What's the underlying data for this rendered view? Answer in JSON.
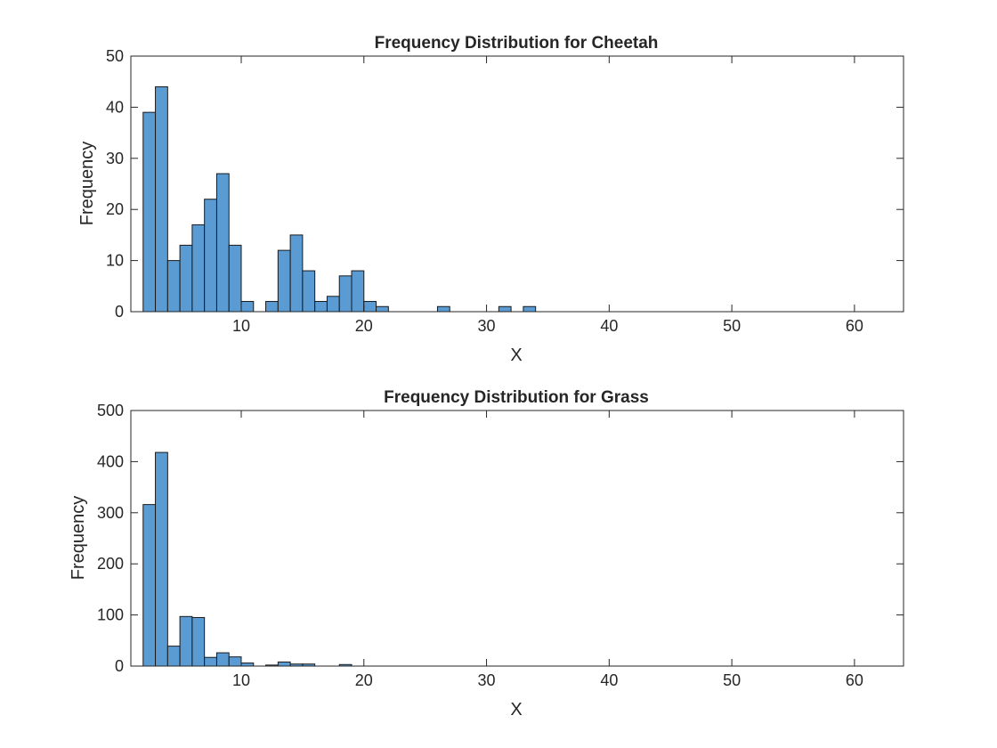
{
  "colors": {
    "bar_fill": "#5b9bd3",
    "bar_edge": "#1a1a1a",
    "axis": "#262626",
    "background": "#ffffff"
  },
  "chart_data": [
    {
      "type": "bar",
      "title": "Frequency Distribution for Cheetah",
      "xlabel": "X",
      "ylabel": "Frequency",
      "xlim": [
        1,
        64
      ],
      "ylim": [
        0,
        50
      ],
      "xticks": [
        10,
        20,
        30,
        40,
        50,
        60
      ],
      "yticks": [
        0,
        10,
        20,
        30,
        40,
        50
      ],
      "bin_edges": [
        2,
        3,
        4,
        5,
        6,
        7,
        8,
        9,
        10,
        11,
        12,
        13,
        14,
        15,
        16,
        17,
        18,
        19,
        20,
        21,
        22,
        23,
        24,
        25,
        26,
        27,
        28,
        29,
        30,
        31,
        32,
        33,
        34,
        35,
        36,
        37,
        38,
        39,
        40,
        41,
        42,
        43,
        44,
        45,
        46,
        47,
        48,
        49,
        50,
        51,
        52,
        53,
        54,
        55,
        56,
        57,
        58,
        59,
        60,
        61,
        62
      ],
      "values": [
        39,
        44,
        10,
        13,
        17,
        22,
        27,
        13,
        2,
        0,
        2,
        12,
        15,
        8,
        2,
        3,
        7,
        8,
        2,
        1,
        0,
        0,
        0,
        0,
        1,
        0,
        0,
        0,
        0,
        1,
        0,
        1,
        0,
        0,
        0,
        0,
        0,
        0,
        0,
        0,
        0,
        0,
        0,
        0,
        0,
        0,
        0,
        0,
        0,
        0,
        0,
        0,
        0,
        0,
        0,
        0,
        0,
        0,
        0,
        0
      ],
      "grid": false
    },
    {
      "type": "bar",
      "title": "Frequency Distribution for Grass",
      "xlabel": "X",
      "ylabel": "Frequency",
      "xlim": [
        1,
        64
      ],
      "ylim": [
        0,
        500
      ],
      "xticks": [
        10,
        20,
        30,
        40,
        50,
        60
      ],
      "yticks": [
        0,
        100,
        200,
        300,
        400,
        500
      ],
      "bin_edges": [
        2,
        3,
        4,
        5,
        6,
        7,
        8,
        9,
        10,
        11,
        12,
        13,
        14,
        15,
        16,
        17,
        18,
        19,
        20,
        21,
        22,
        23,
        24,
        25,
        26,
        27,
        28,
        29,
        30,
        31,
        32,
        33,
        34,
        35,
        36,
        37,
        38,
        39,
        40,
        41,
        42,
        43,
        44,
        45,
        46,
        47,
        48,
        49,
        50,
        51,
        52,
        53,
        54,
        55,
        56,
        57,
        58,
        59,
        60,
        61,
        62
      ],
      "values": [
        316,
        418,
        39,
        97,
        95,
        17,
        26,
        18,
        6,
        0,
        2,
        8,
        4,
        4,
        0,
        0,
        3,
        0,
        0,
        0,
        0,
        0,
        0,
        0,
        0,
        0,
        0,
        0,
        0,
        0,
        0,
        0,
        0,
        0,
        0,
        0,
        0,
        0,
        0,
        0,
        0,
        0,
        0,
        0,
        0,
        0,
        0,
        0,
        0,
        0,
        0,
        0,
        0,
        0,
        0,
        0,
        0,
        0,
        0,
        0
      ],
      "grid": false
    }
  ]
}
